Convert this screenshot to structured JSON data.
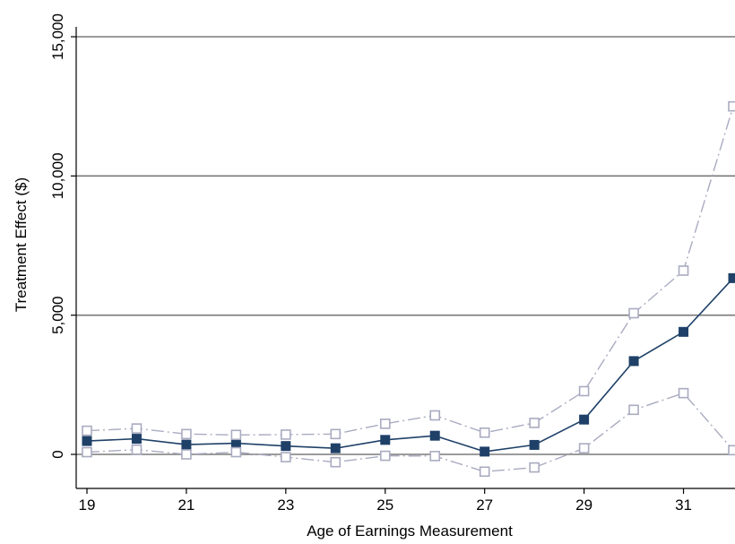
{
  "chart_data": {
    "type": "line",
    "title": "",
    "xlabel": "Age of Earnings Measurement",
    "ylabel": "Treatment Effect ($)",
    "xlim": [
      19,
      32
    ],
    "ylim": [
      -1000,
      15000
    ],
    "xticks": [
      19,
      21,
      23,
      25,
      27,
      29,
      31
    ],
    "xtick_labels": [
      "19",
      "21",
      "23",
      "25",
      "27",
      "29",
      "31"
    ],
    "yticks": [
      0,
      5000,
      10000,
      15000
    ],
    "ytick_labels": [
      "0",
      "5,000",
      "10,000",
      "15,000"
    ],
    "grid": "horizontal at y ticks",
    "legend": "none",
    "x": [
      19,
      20,
      21,
      22,
      23,
      24,
      25,
      26,
      27,
      28,
      29,
      30,
      31,
      32
    ],
    "series": [
      {
        "role": "estimate",
        "color": "#1f4168",
        "values": [
          480,
          560,
          350,
          400,
          300,
          220,
          520,
          670,
          100,
          340,
          1250,
          3350,
          4400,
          6330
        ]
      },
      {
        "role": "upper bound",
        "color": "#a9abc0",
        "values": [
          850,
          930,
          730,
          700,
          710,
          730,
          1100,
          1400,
          780,
          1130,
          2270,
          5070,
          6600,
          12500
        ]
      },
      {
        "role": "lower bound",
        "color": "#a9abc0",
        "values": [
          80,
          170,
          0,
          80,
          -100,
          -280,
          -50,
          -60,
          -620,
          -470,
          220,
          1600,
          2200,
          150
        ]
      }
    ]
  }
}
